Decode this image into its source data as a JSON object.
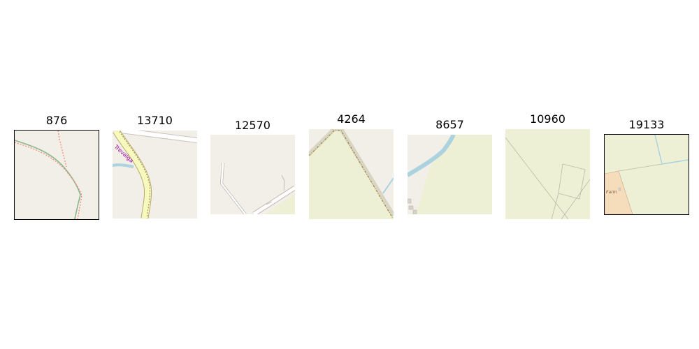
{
  "tiles": [
    {
      "title": "876"
    },
    {
      "title": "13710",
      "street_label": "Trevalga"
    },
    {
      "title": "12570"
    },
    {
      "title": "4264"
    },
    {
      "title": "8657"
    },
    {
      "title": "10960"
    },
    {
      "title": "19133",
      "place_label": "Farm"
    }
  ],
  "colors": {
    "land": "#f2efe9",
    "farmland": "#eef0d5",
    "road_yellow": "#f7fabf",
    "water": "#aad3df",
    "farmyard": "#f5dcba",
    "path_red": "#fa8072",
    "boundary_green": "#8ab88a"
  }
}
